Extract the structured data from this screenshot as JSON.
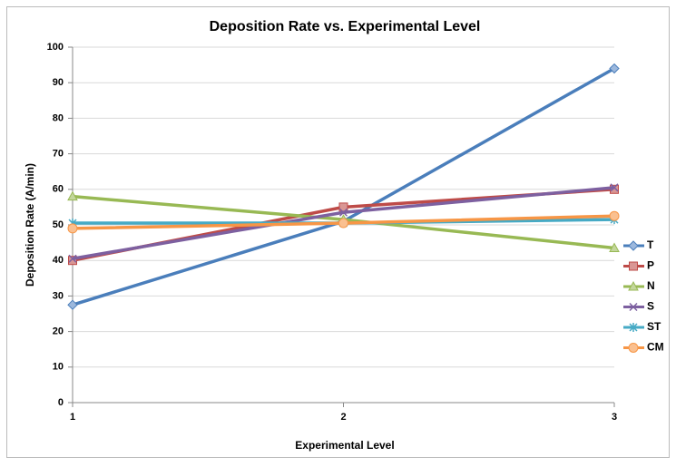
{
  "chart_data": {
    "type": "line",
    "title": "Deposition Rate vs. Experimental Level",
    "x_label": "Experimental Level",
    "y_label": "Deposition Rate (A/min)",
    "x": [
      1,
      2,
      3
    ],
    "xlim": [
      1,
      3
    ],
    "xticks": [
      1,
      2,
      3
    ],
    "ylim": [
      0,
      100
    ],
    "yticks": [
      0,
      10,
      20,
      30,
      40,
      50,
      60,
      70,
      80,
      90,
      100
    ],
    "grid": true,
    "legend": "right",
    "series": [
      {
        "name": "T",
        "color": "#4a7ebb",
        "marker": "diamond",
        "values": [
          27.5,
          51,
          94
        ]
      },
      {
        "name": "P",
        "color": "#be4b48",
        "marker": "square",
        "values": [
          40,
          55,
          60
        ]
      },
      {
        "name": "N",
        "color": "#98b954",
        "marker": "triangle",
        "values": [
          58,
          51.5,
          43.5
        ]
      },
      {
        "name": "S",
        "color": "#7d60a0",
        "marker": "x",
        "values": [
          40.5,
          53.5,
          60.5
        ]
      },
      {
        "name": "ST",
        "color": "#46aac5",
        "marker": "star",
        "values": [
          50.5,
          50.5,
          51.5
        ]
      },
      {
        "name": "CM",
        "color": "#f79646",
        "marker": "circle",
        "values": [
          49,
          50.5,
          52.5
        ]
      }
    ]
  }
}
